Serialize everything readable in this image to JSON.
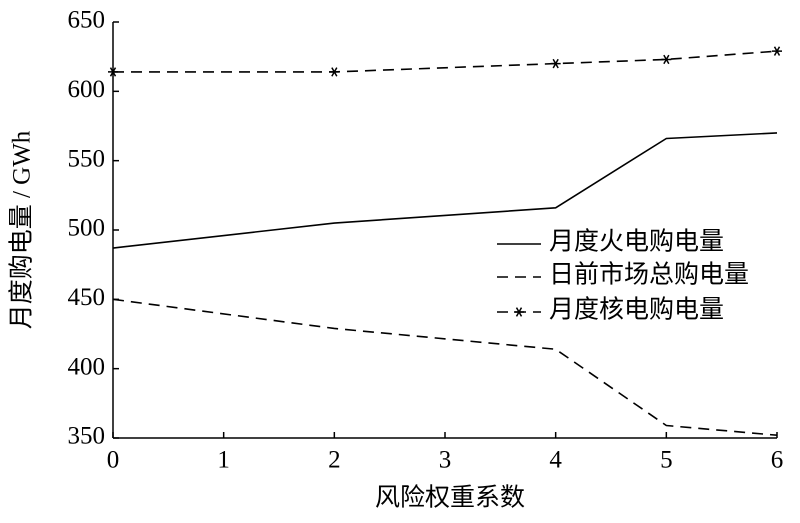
{
  "chart_data": {
    "type": "line",
    "xlabel": "风险权重系数",
    "ylabel": "月度购电量 / GWh",
    "x": [
      0,
      2,
      4,
      5,
      6
    ],
    "series": [
      {
        "name": "月度火电购电量",
        "color": "#000000",
        "dash": "solid",
        "values": [
          487,
          505,
          516,
          566,
          570
        ]
      },
      {
        "name": "日前市场总购电量",
        "color": "#000000",
        "dash": "dashed",
        "values": [
          450,
          429,
          414,
          359,
          352
        ]
      },
      {
        "name": "月度核电购电量",
        "color": "#000000",
        "dash": "dashed",
        "marker": "asterisk",
        "values": [
          614,
          614,
          620,
          623,
          629
        ]
      }
    ],
    "xlim": [
      0,
      6
    ],
    "xticks": [
      0,
      1,
      2,
      3,
      4,
      5,
      6
    ],
    "ylim": [
      350,
      650
    ],
    "yticks": [
      350,
      400,
      450,
      500,
      550,
      600,
      650
    ],
    "grid": false,
    "legend": "right"
  }
}
